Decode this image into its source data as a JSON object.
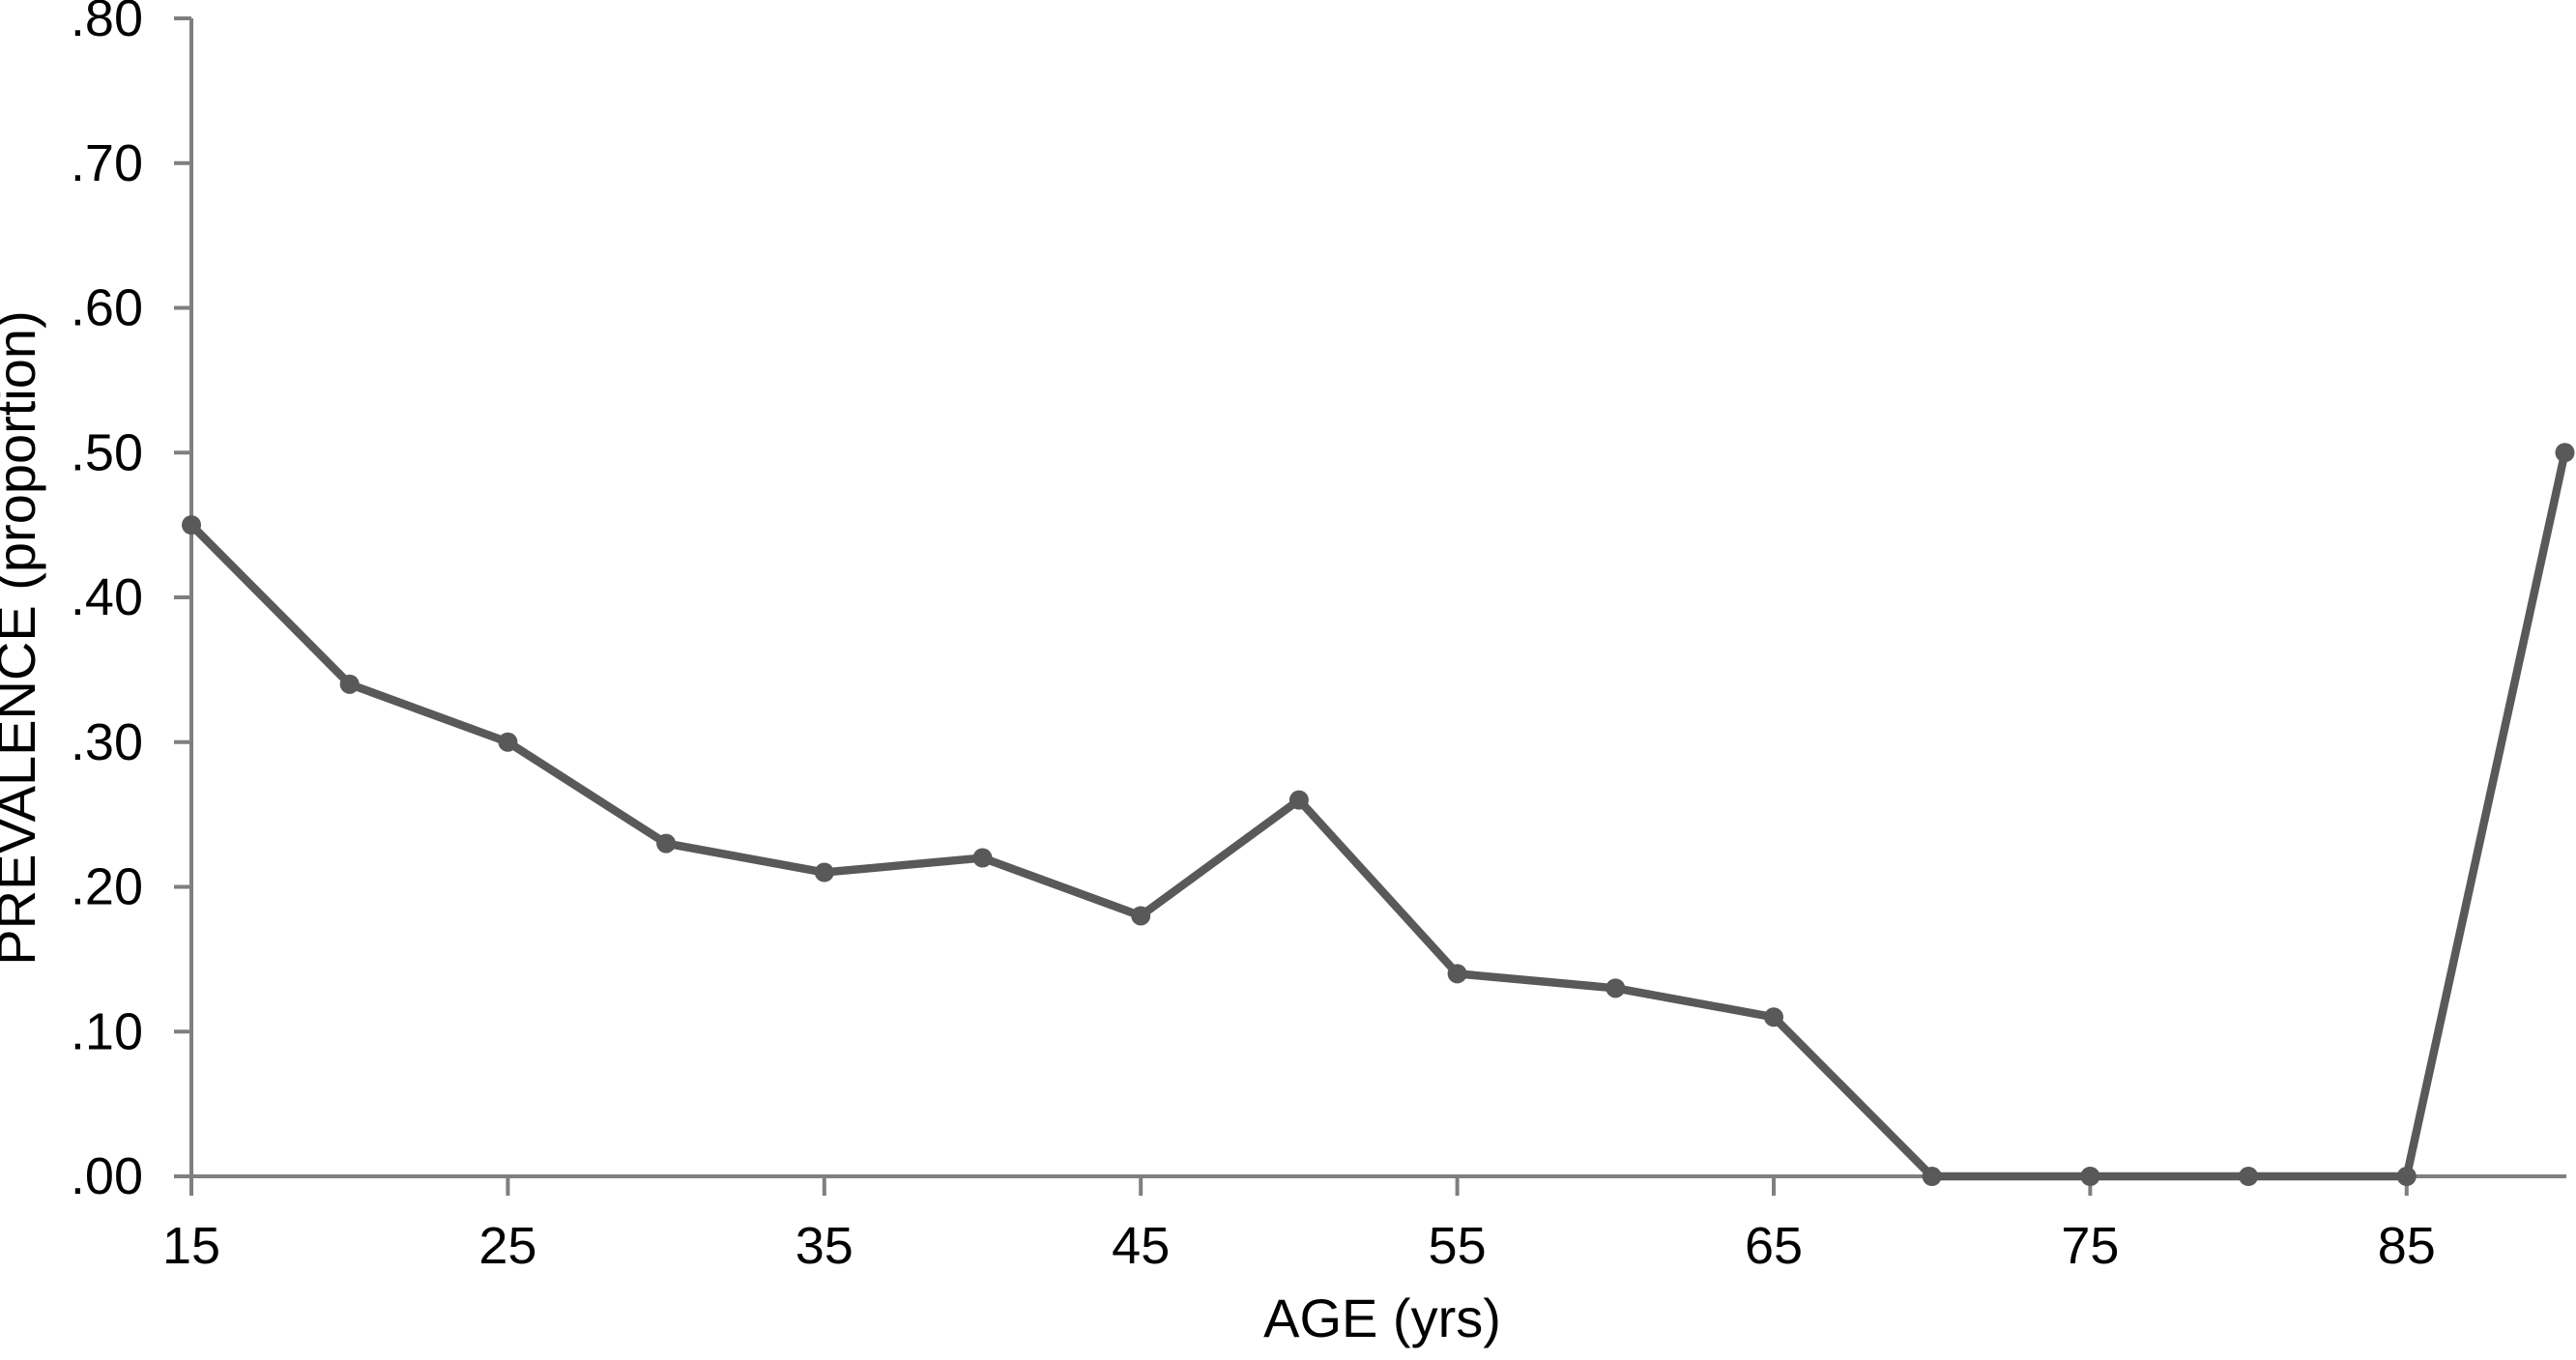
{
  "figure": {
    "background": "#ffffff"
  },
  "chart_data": {
    "type": "line",
    "title": "",
    "xlabel": "AGE (yrs)",
    "ylabel": "PREVALENCE (proportion)",
    "x": [
      15,
      20,
      25,
      30,
      35,
      40,
      45,
      50,
      55,
      60,
      65,
      70,
      75,
      80,
      85,
      90
    ],
    "series": [
      {
        "name": "prevalence",
        "values": [
          0.45,
          0.34,
          0.3,
          0.23,
          0.21,
          0.22,
          0.18,
          0.26,
          0.14,
          0.13,
          0.11,
          0.0,
          0.0,
          0.0,
          0.0,
          0.5
        ]
      }
    ],
    "x_ticks": [
      {
        "label": "15",
        "value": 15
      },
      {
        "label": "25",
        "value": 25
      },
      {
        "label": "35",
        "value": 35
      },
      {
        "label": "45",
        "value": 45
      },
      {
        "label": "55",
        "value": 55
      },
      {
        "label": "65",
        "value": 65
      },
      {
        "label": "75",
        "value": 75
      },
      {
        "label": "85",
        "value": 85
      }
    ],
    "y_ticks": [
      {
        "label": ".00",
        "value": 0.0
      },
      {
        "label": ".10",
        "value": 0.1
      },
      {
        "label": ".20",
        "value": 0.2
      },
      {
        "label": ".30",
        "value": 0.3
      },
      {
        "label": ".40",
        "value": 0.4
      },
      {
        "label": ".50",
        "value": 0.5
      },
      {
        "label": ".60",
        "value": 0.6
      },
      {
        "label": ".70",
        "value": 0.7
      },
      {
        "label": ".80",
        "value": 0.8
      }
    ],
    "xlim": [
      15,
      90
    ],
    "ylim": [
      0.0,
      0.8
    ],
    "grid": false,
    "legend": false,
    "marker": "circle",
    "line_color": "#595959",
    "axis_color": "#7f7f7f",
    "text_color": "#000000"
  }
}
